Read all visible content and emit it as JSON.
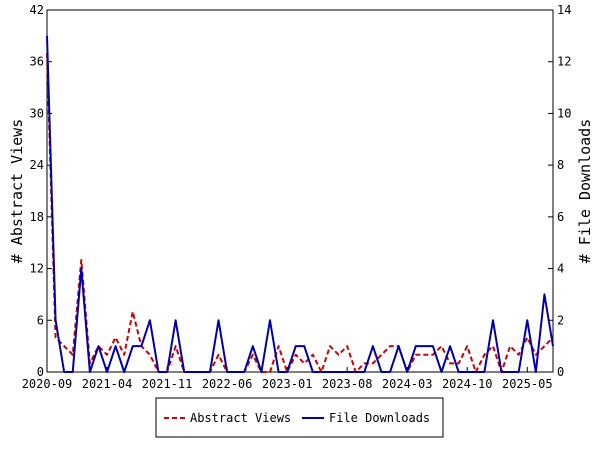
{
  "chart_data": {
    "type": "line",
    "title": "",
    "x_tick_labels": [
      "2020-09",
      "2021-04",
      "2021-11",
      "2022-06",
      "2023-01",
      "2023-08",
      "2024-03",
      "2024-10",
      "2025-05"
    ],
    "x_range": [
      "2020-09",
      "2025-08"
    ],
    "grid": false,
    "legend_position": "bottom-center",
    "axes": {
      "left": {
        "label": "# Abstract Views",
        "ylim": [
          0,
          42
        ],
        "ticks": [
          0,
          6,
          12,
          18,
          24,
          30,
          36,
          42
        ]
      },
      "right": {
        "label": "# File Downloads",
        "ylim": [
          0,
          14
        ],
        "ticks": [
          0,
          2,
          4,
          6,
          8,
          10,
          12,
          14
        ]
      }
    },
    "months": [
      "2020-09",
      "2020-10",
      "2020-11",
      "2020-12",
      "2021-01",
      "2021-02",
      "2021-03",
      "2021-04",
      "2021-05",
      "2021-06",
      "2021-07",
      "2021-08",
      "2021-09",
      "2021-10",
      "2021-11",
      "2021-12",
      "2022-01",
      "2022-02",
      "2022-03",
      "2022-04",
      "2022-05",
      "2022-06",
      "2022-07",
      "2022-08",
      "2022-09",
      "2022-10",
      "2022-11",
      "2022-12",
      "2023-01",
      "2023-02",
      "2023-03",
      "2023-04",
      "2023-05",
      "2023-06",
      "2023-07",
      "2023-08",
      "2023-09",
      "2023-10",
      "2023-11",
      "2023-12",
      "2024-01",
      "2024-02",
      "2024-03",
      "2024-04",
      "2024-05",
      "2024-06",
      "2024-07",
      "2024-08",
      "2024-09",
      "2024-10",
      "2024-11",
      "2024-12",
      "2025-01",
      "2025-02",
      "2025-03",
      "2025-04",
      "2025-05",
      "2025-06",
      "2025-07",
      "2025-08"
    ],
    "series": [
      {
        "name": "Abstract Views",
        "axis": "left",
        "color": "#cc0000",
        "dash": "dashed",
        "values": [
          37,
          4,
          3,
          2,
          13,
          1,
          3,
          2,
          4,
          2,
          7,
          3,
          2,
          0,
          0,
          3,
          0,
          0,
          0,
          0,
          2,
          0,
          0,
          0,
          2,
          0,
          0,
          3,
          0,
          2,
          1,
          2,
          0,
          3,
          2,
          3,
          0,
          1,
          1,
          2,
          3,
          3,
          0,
          2,
          2,
          2,
          3,
          1,
          1,
          3,
          0,
          2,
          3,
          0,
          3,
          2,
          4,
          2,
          3,
          4
        ]
      },
      {
        "name": "File Downloads",
        "axis": "right",
        "color": "#0000aa",
        "dash": "solid",
        "values": [
          13,
          2,
          0,
          0,
          4,
          0,
          1,
          0,
          1,
          0,
          1,
          1,
          2,
          0,
          0,
          2,
          0,
          0,
          0,
          0,
          2,
          0,
          0,
          0,
          1,
          0,
          2,
          0,
          0,
          1,
          1,
          0,
          0,
          0,
          0,
          0,
          0,
          0,
          1,
          0,
          0,
          1,
          0,
          1,
          1,
          1,
          0,
          1,
          0,
          0,
          0,
          0,
          2,
          0,
          0,
          0,
          2,
          0,
          3,
          1
        ]
      }
    ]
  }
}
